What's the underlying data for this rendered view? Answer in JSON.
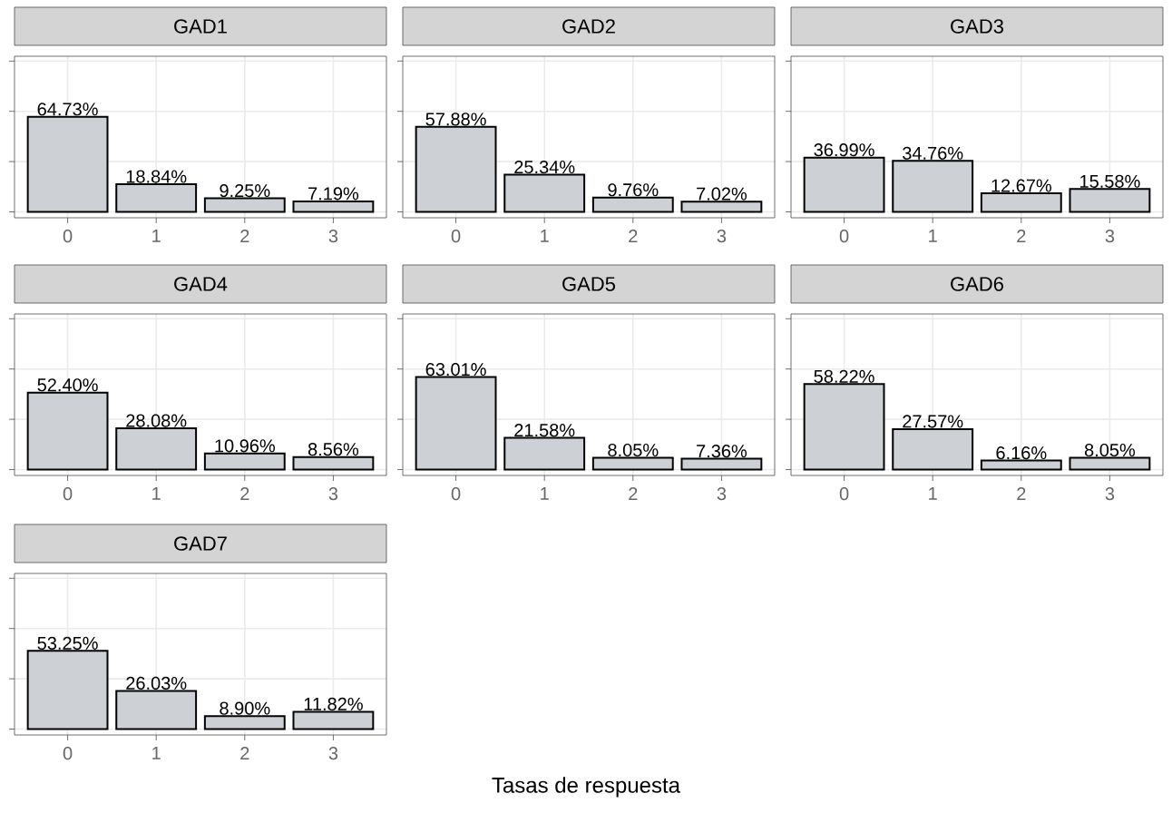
{
  "chart_data": [
    {
      "type": "bar",
      "title": "GAD1",
      "categories": [
        "0",
        "1",
        "2",
        "3"
      ],
      "values": [
        64.73,
        18.84,
        9.25,
        7.19
      ],
      "value_labels": [
        "64.73%",
        "18.84%",
        "9.25%",
        "7.19%"
      ],
      "color": "#cdd1d6",
      "ylim": [
        -4,
        106
      ],
      "yticks": [
        {
          "value": 0,
          "label": null
        },
        {
          "value": 34.25,
          "label": null
        },
        {
          "value": 68.49,
          "label": null
        },
        {
          "value": 102.74,
          "label": null
        }
      ],
      "grid": true,
      "tick_labels": "x"
    },
    {
      "type": "bar",
      "title": "GAD2",
      "categories": [
        "0",
        "1",
        "2",
        "3"
      ],
      "values": [
        57.88,
        25.34,
        9.76,
        7.02
      ],
      "value_labels": [
        "57.88%",
        "25.34%",
        "9.76%",
        "7.02%"
      ],
      "color": "#cdd1d6",
      "ylim": [
        -4,
        106
      ],
      "yticks": [
        {
          "value": 0,
          "label": null
        },
        {
          "value": 34.25,
          "label": null
        },
        {
          "value": 68.49,
          "label": null
        },
        {
          "value": 102.74,
          "label": null
        }
      ],
      "grid": true,
      "tick_labels": "x"
    },
    {
      "type": "bar",
      "title": "GAD3",
      "categories": [
        "0",
        "1",
        "2",
        "3"
      ],
      "values": [
        36.99,
        34.76,
        12.67,
        15.58
      ],
      "value_labels": [
        "36.99%",
        "34.76%",
        "12.67%",
        "15.58%"
      ],
      "color": "#cdd1d6",
      "ylim": [
        -4,
        106
      ],
      "yticks": [
        {
          "value": 0,
          "label": null
        },
        {
          "value": 34.25,
          "label": null
        },
        {
          "value": 68.49,
          "label": null
        },
        {
          "value": 102.74,
          "label": null
        }
      ],
      "grid": true,
      "tick_labels": "x"
    },
    {
      "type": "bar",
      "title": "GAD4",
      "categories": [
        "0",
        "1",
        "2",
        "3"
      ],
      "values": [
        52.4,
        28.08,
        10.96,
        8.56
      ],
      "value_labels": [
        "52.40%",
        "28.08%",
        "10.96%",
        "8.56%"
      ],
      "color": "#cdd1d6",
      "ylim": [
        -4,
        106
      ],
      "yticks": [
        {
          "value": 0,
          "label": null
        },
        {
          "value": 34.25,
          "label": null
        },
        {
          "value": 68.49,
          "label": null
        },
        {
          "value": 102.74,
          "label": null
        }
      ],
      "grid": true,
      "tick_labels": "x"
    },
    {
      "type": "bar",
      "title": "GAD5",
      "categories": [
        "0",
        "1",
        "2",
        "3"
      ],
      "values": [
        63.01,
        21.58,
        8.05,
        7.36
      ],
      "value_labels": [
        "63.01%",
        "21.58%",
        "8.05%",
        "7.36%"
      ],
      "color": "#cdd1d6",
      "ylim": [
        -4,
        106
      ],
      "yticks": [
        {
          "value": 0,
          "label": null
        },
        {
          "value": 34.25,
          "label": null
        },
        {
          "value": 68.49,
          "label": null
        },
        {
          "value": 102.74,
          "label": null
        }
      ],
      "grid": true,
      "tick_labels": "x"
    },
    {
      "type": "bar",
      "title": "GAD6",
      "categories": [
        "0",
        "1",
        "2",
        "3"
      ],
      "values": [
        58.22,
        27.57,
        6.16,
        8.05
      ],
      "value_labels": [
        "58.22%",
        "27.57%",
        "6.16%",
        "8.05%"
      ],
      "color": "#cdd1d6",
      "ylim": [
        -4,
        106
      ],
      "yticks": [
        {
          "value": 0,
          "label": null
        },
        {
          "value": 34.25,
          "label": null
        },
        {
          "value": 68.49,
          "label": null
        },
        {
          "value": 102.74,
          "label": null
        }
      ],
      "grid": true,
      "tick_labels": "x"
    },
    {
      "type": "bar",
      "title": "GAD7",
      "xlabel": "Tasas de respuesta",
      "categories": [
        "0",
        "1",
        "2",
        "3"
      ],
      "values": [
        53.25,
        26.03,
        8.9,
        11.82
      ],
      "value_labels": [
        "53.25%",
        "26.03%",
        "8.90%",
        "11.82%"
      ],
      "color": "#cdd1d6",
      "ylim": [
        -4,
        106
      ],
      "yticks": [
        {
          "value": 0,
          "label": null
        },
        {
          "value": 34.25,
          "label": null
        },
        {
          "value": 68.49,
          "label": null
        },
        {
          "value": 102.74,
          "label": null
        }
      ],
      "grid": true,
      "tick_labels": "x"
    }
  ]
}
